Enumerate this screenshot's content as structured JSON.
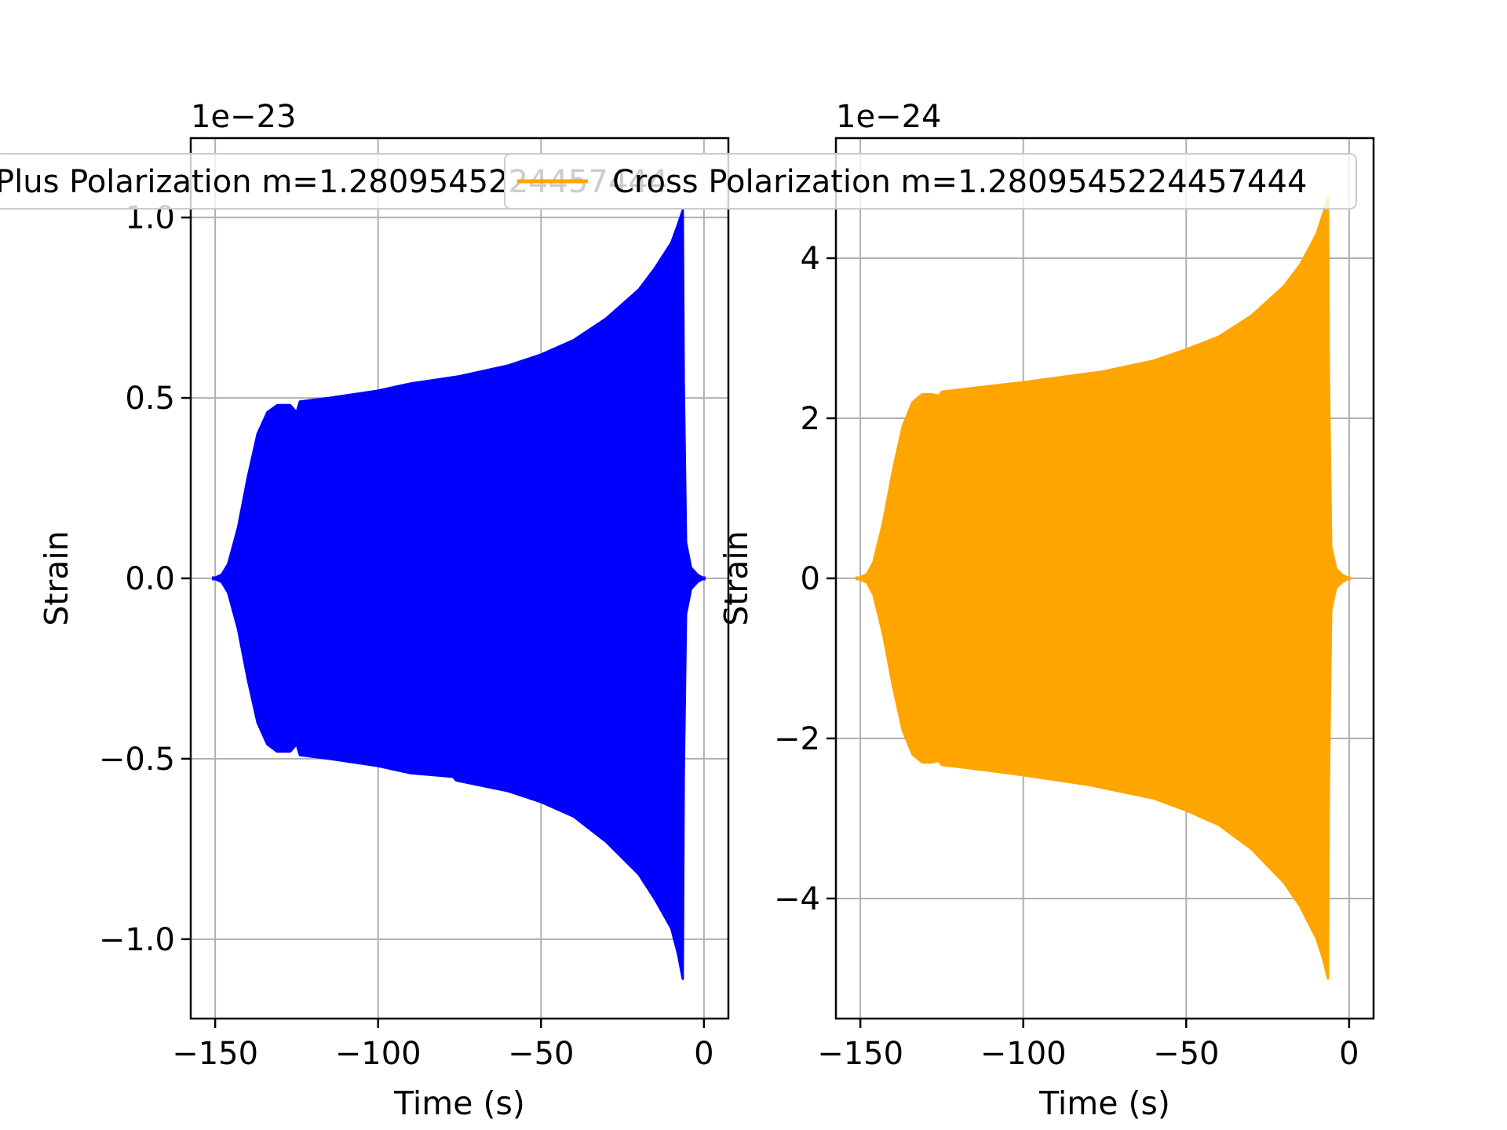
{
  "figure": {
    "background": "#ffffff",
    "grid_color": "#b0b0b0",
    "frame_color": "#000000"
  },
  "chart_data": [
    {
      "type": "line",
      "panel": "left",
      "title": "",
      "xlabel": "Time (s)",
      "ylabel": "Strain",
      "offset_text": "1e−23",
      "y_scale": 1e-23,
      "xlim": [
        -157.5,
        7.5
      ],
      "ylim": [
        -1.22,
        1.22
      ],
      "xticks": [
        {
          "value": -150,
          "label": "−150"
        },
        {
          "value": -100,
          "label": "−100"
        },
        {
          "value": -50,
          "label": "−50"
        },
        {
          "value": 0,
          "label": "0"
        }
      ],
      "yticks": [
        {
          "value": 1.0,
          "label": "1.0"
        },
        {
          "value": 0.5,
          "label": "0.5"
        },
        {
          "value": 0.0,
          "label": "0.0"
        },
        {
          "value": -0.5,
          "label": "−0.5"
        },
        {
          "value": -1.0,
          "label": "−1.0"
        }
      ],
      "grid": true,
      "legend": "upper-left",
      "series": [
        {
          "name": "Plus Polarization m=1.2809545224457444",
          "color": "#0000ff",
          "envelope_upper": [
            [
              -150.5,
              0.0
            ],
            [
              -148,
              0.01
            ],
            [
              -146,
              0.04
            ],
            [
              -143,
              0.14
            ],
            [
              -140,
              0.28
            ],
            [
              -137,
              0.4
            ],
            [
              -134,
              0.46
            ],
            [
              -131,
              0.48
            ],
            [
              -127,
              0.48
            ],
            [
              -125,
              0.46
            ],
            [
              -124,
              0.49
            ],
            [
              -115,
              0.5
            ],
            [
              -100,
              0.52
            ],
            [
              -90,
              0.54
            ],
            [
              -75,
              0.56
            ],
            [
              -60,
              0.59
            ],
            [
              -50,
              0.62
            ],
            [
              -40,
              0.66
            ],
            [
              -30,
              0.72
            ],
            [
              -20,
              0.8
            ],
            [
              -15,
              0.86
            ],
            [
              -10,
              0.93
            ],
            [
              -8,
              0.98
            ],
            [
              -6.5,
              1.02
            ],
            [
              -6.2,
              0.55
            ],
            [
              -5.5,
              0.1
            ],
            [
              -4,
              0.03
            ],
            [
              -2,
              0.01
            ],
            [
              0,
              0.0
            ]
          ],
          "envelope_lower": [
            [
              -150.5,
              0.0
            ],
            [
              -148,
              -0.01
            ],
            [
              -146,
              -0.04
            ],
            [
              -143,
              -0.14
            ],
            [
              -140,
              -0.28
            ],
            [
              -137,
              -0.4
            ],
            [
              -134,
              -0.46
            ],
            [
              -131,
              -0.48
            ],
            [
              -127,
              -0.48
            ],
            [
              -125,
              -0.46
            ],
            [
              -124,
              -0.49
            ],
            [
              -115,
              -0.5
            ],
            [
              -100,
              -0.52
            ],
            [
              -90,
              -0.54
            ],
            [
              -77,
              -0.55
            ],
            [
              -76,
              -0.56
            ],
            [
              -60,
              -0.59
            ],
            [
              -50,
              -0.62
            ],
            [
              -40,
              -0.66
            ],
            [
              -30,
              -0.73
            ],
            [
              -20,
              -0.82
            ],
            [
              -15,
              -0.89
            ],
            [
              -10,
              -0.97
            ],
            [
              -8,
              -1.04
            ],
            [
              -6.5,
              -1.11
            ],
            [
              -6.2,
              -0.55
            ],
            [
              -5.5,
              -0.1
            ],
            [
              -4,
              -0.03
            ],
            [
              -2,
              -0.01
            ],
            [
              0,
              0.0
            ]
          ]
        }
      ]
    },
    {
      "type": "line",
      "panel": "right",
      "title": "",
      "xlabel": "Time (s)",
      "ylabel": "Strain",
      "offset_text": "1e−24",
      "y_scale": 1e-24,
      "xlim": [
        -157.5,
        7.5
      ],
      "ylim": [
        -5.5,
        5.5
      ],
      "xticks": [
        {
          "value": -150,
          "label": "−150"
        },
        {
          "value": -100,
          "label": "−100"
        },
        {
          "value": -50,
          "label": "−50"
        },
        {
          "value": 0,
          "label": "0"
        }
      ],
      "yticks": [
        {
          "value": 4,
          "label": "4"
        },
        {
          "value": 2,
          "label": "2"
        },
        {
          "value": 0,
          "label": "0"
        },
        {
          "value": -2,
          "label": "−2"
        },
        {
          "value": -4,
          "label": "−4"
        }
      ],
      "grid": true,
      "legend": "upper-left",
      "series": [
        {
          "name": "Cross Polarization m=1.2809545224457444",
          "color": "#ffa500",
          "envelope_upper": [
            [
              -151,
              0.0
            ],
            [
              -148,
              0.05
            ],
            [
              -146,
              0.2
            ],
            [
              -143,
              0.7
            ],
            [
              -140,
              1.35
            ],
            [
              -137,
              1.9
            ],
            [
              -134,
              2.2
            ],
            [
              -131,
              2.3
            ],
            [
              -128,
              2.3
            ],
            [
              -126,
              2.28
            ],
            [
              -125,
              2.33
            ],
            [
              -115,
              2.38
            ],
            [
              -100,
              2.45
            ],
            [
              -80,
              2.56
            ],
            [
              -76,
              2.58
            ],
            [
              -60,
              2.72
            ],
            [
              -50,
              2.86
            ],
            [
              -40,
              3.02
            ],
            [
              -30,
              3.28
            ],
            [
              -20,
              3.65
            ],
            [
              -15,
              3.92
            ],
            [
              -10,
              4.3
            ],
            [
              -8,
              4.55
            ],
            [
              -6.5,
              4.75
            ],
            [
              -6.2,
              2.5
            ],
            [
              -5.5,
              0.4
            ],
            [
              -4,
              0.12
            ],
            [
              -2,
              0.04
            ],
            [
              0,
              0.0
            ]
          ],
          "envelope_lower": [
            [
              -151,
              0.0
            ],
            [
              -148,
              -0.05
            ],
            [
              -146,
              -0.2
            ],
            [
              -143,
              -0.7
            ],
            [
              -140,
              -1.35
            ],
            [
              -137,
              -1.9
            ],
            [
              -134,
              -2.2
            ],
            [
              -131,
              -2.3
            ],
            [
              -128,
              -2.3
            ],
            [
              -126,
              -2.28
            ],
            [
              -125,
              -2.33
            ],
            [
              -115,
              -2.38
            ],
            [
              -100,
              -2.46
            ],
            [
              -80,
              -2.58
            ],
            [
              -60,
              -2.75
            ],
            [
              -50,
              -2.9
            ],
            [
              -40,
              -3.08
            ],
            [
              -30,
              -3.38
            ],
            [
              -20,
              -3.8
            ],
            [
              -15,
              -4.1
            ],
            [
              -10,
              -4.5
            ],
            [
              -8,
              -4.75
            ],
            [
              -6.5,
              -5.0
            ],
            [
              -6.2,
              -2.5
            ],
            [
              -5.5,
              -0.4
            ],
            [
              -4,
              -0.12
            ],
            [
              -2,
              -0.04
            ],
            [
              0,
              0.0
            ]
          ]
        }
      ]
    }
  ]
}
